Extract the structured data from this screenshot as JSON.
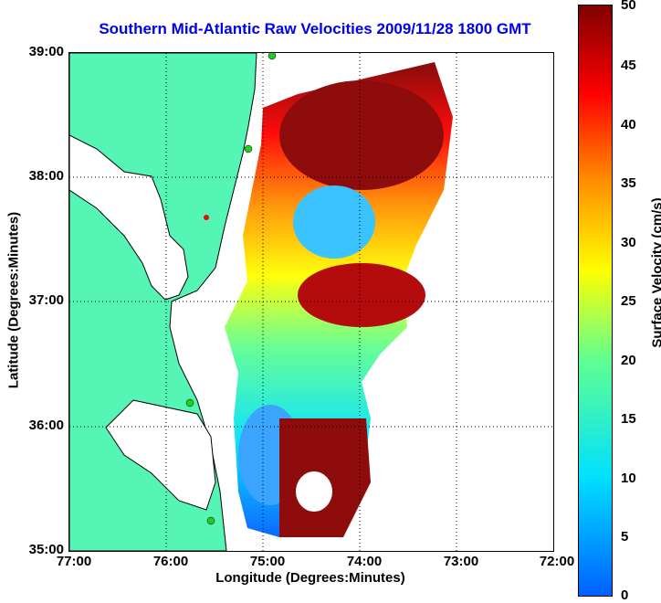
{
  "title": "Southern Mid-Atlantic Raw Velocities 2009/11/28 1800 GMT",
  "xlabel": "Longitude (Degrees:Minutes)",
  "ylabel": "Latitude (Degrees:Minutes)",
  "colorbar_label": "Surface Velocity (cm/s)",
  "xticks": [
    "77:00",
    "76:00",
    "75:00",
    "74:00",
    "73:00",
    "72:00"
  ],
  "yticks": [
    "39:00",
    "38:00",
    "37:00",
    "36:00",
    "35:00"
  ],
  "cticks": [
    "50",
    "45",
    "40",
    "35",
    "30",
    "25",
    "20",
    "15",
    "10",
    "5",
    "0"
  ],
  "colors": {
    "land": "#55f5b5",
    "title": "#0000ee",
    "coast_line": "#000000"
  }
}
